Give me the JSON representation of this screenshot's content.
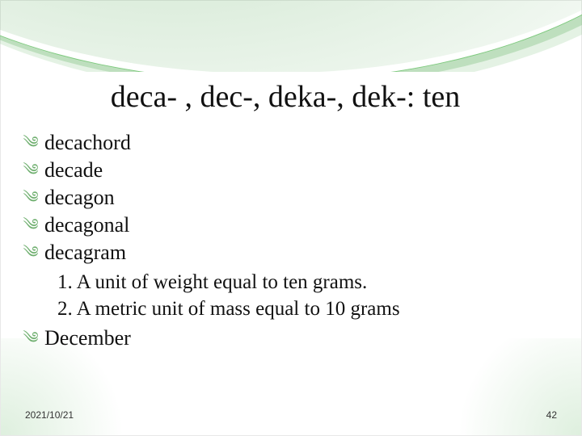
{
  "title": "deca- , dec-, deka-, dek-: ten",
  "bullets_top": [
    "decachord",
    "decade",
    "decagon",
    "decagonal",
    "decagram"
  ],
  "definitions": [
    "1. A unit of weight equal to ten grams.",
    "2. A metric unit of mass equal to 10 grams"
  ],
  "bullets_bottom": [
    "December"
  ],
  "footer": {
    "date": "2021/10/21",
    "page": "42"
  },
  "style": {
    "bullet_glyph": "༄",
    "accent_color": "#6faf6f",
    "title_fontsize": 38,
    "body_fontsize": 26,
    "def_fontsize": 25,
    "background": "#ffffff"
  }
}
